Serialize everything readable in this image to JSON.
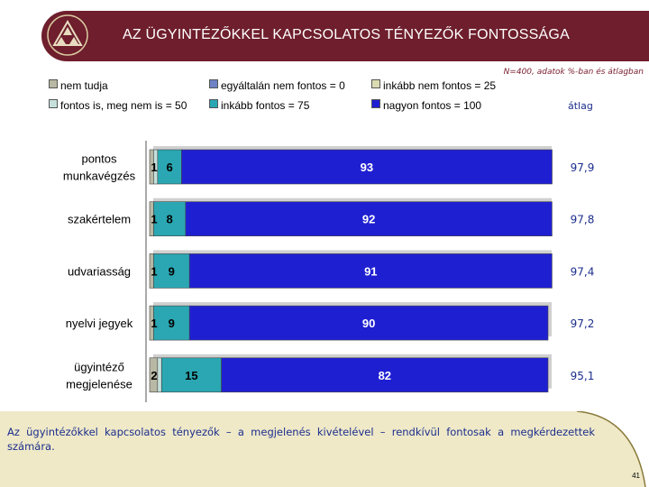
{
  "header": {
    "title": "AZ ÜGYINTÉZŐKKEL KAPCSOLATOS TÉNYEZŐK FONTOSSÁGA"
  },
  "note": "N=400, adatok %-ban és átlagban",
  "avg_column_title": "átlag",
  "summary": "Az ügyintézőkkel kapcsolatos tényezők – a megjelenés kivételével – rendkívül fontosak a megkérdezettek számára.",
  "page_number": "41",
  "colors": {
    "header_bg": "#6e1e2c",
    "nem_tudja": "#b8b8a4",
    "egyaltalan": "#6f82c6",
    "inkabb_nem": "#dcdcb4",
    "fontos_is": "#c6e0dc",
    "inkabb_fontos": "#2aa7b2",
    "nagyon_fontos": "#1f1fd2",
    "avg_text": "#1c2e8c"
  },
  "chart_data": {
    "type": "bar",
    "orientation": "horizontal",
    "stacked": true,
    "title": "AZ ÜGYINTÉZŐKKEL KAPCSOLATOS TÉNYEZŐK FONTOSSÁGA",
    "xlim": [
      0,
      100
    ],
    "legend_position": "top",
    "categories": [
      "pontos munkavégzés",
      "szakértelem",
      "udvariasság",
      "nyelvi jegyek",
      "ügyintéző megjelenése"
    ],
    "category_lines": [
      [
        "pontos",
        "munkavégzés"
      ],
      [
        "szakértelem"
      ],
      [
        "udvariasság"
      ],
      [
        "nyelvi jegyek"
      ],
      [
        "ügyintéző",
        "megjelenése"
      ]
    ],
    "series": [
      {
        "name": "nem tudja",
        "color": "#b8b8a4",
        "values": [
          1,
          1,
          1,
          1,
          2
        ]
      },
      {
        "name": "egyáltalán nem fontos = 0",
        "color": "#6f82c6",
        "values": [
          0,
          0,
          0,
          0,
          0
        ]
      },
      {
        "name": "inkább nem fontos = 25",
        "color": "#dcdcb4",
        "values": [
          0,
          0,
          0,
          0,
          0
        ]
      },
      {
        "name": "fontos is, meg nem is = 50",
        "color": "#c6e0dc",
        "values": [
          1,
          0,
          0,
          0,
          1
        ]
      },
      {
        "name": "inkább fontos = 75",
        "color": "#2aa7b2",
        "values": [
          6,
          8,
          9,
          9,
          15
        ]
      },
      {
        "name": "nagyon fontos = 100",
        "color": "#1f1fd2",
        "values": [
          93,
          92,
          91,
          90,
          82
        ]
      }
    ],
    "data_labels": [
      {
        "category": 0,
        "series": 0,
        "text": "1"
      },
      {
        "category": 0,
        "series": 4,
        "text": "6"
      },
      {
        "category": 0,
        "series": 5,
        "text": "93"
      },
      {
        "category": 1,
        "series": 0,
        "text": "1"
      },
      {
        "category": 1,
        "series": 4,
        "text": "8"
      },
      {
        "category": 1,
        "series": 5,
        "text": "92"
      },
      {
        "category": 2,
        "series": 0,
        "text": "1"
      },
      {
        "category": 2,
        "series": 4,
        "text": "9"
      },
      {
        "category": 2,
        "series": 5,
        "text": "91"
      },
      {
        "category": 3,
        "series": 0,
        "text": "1"
      },
      {
        "category": 3,
        "series": 4,
        "text": "9"
      },
      {
        "category": 3,
        "series": 5,
        "text": "90"
      },
      {
        "category": 4,
        "series": 0,
        "text": "2"
      },
      {
        "category": 4,
        "series": 4,
        "text": "15"
      },
      {
        "category": 4,
        "series": 5,
        "text": "82"
      }
    ],
    "averages": [
      "97,9",
      "97,8",
      "97,4",
      "97,2",
      "95,1"
    ]
  }
}
